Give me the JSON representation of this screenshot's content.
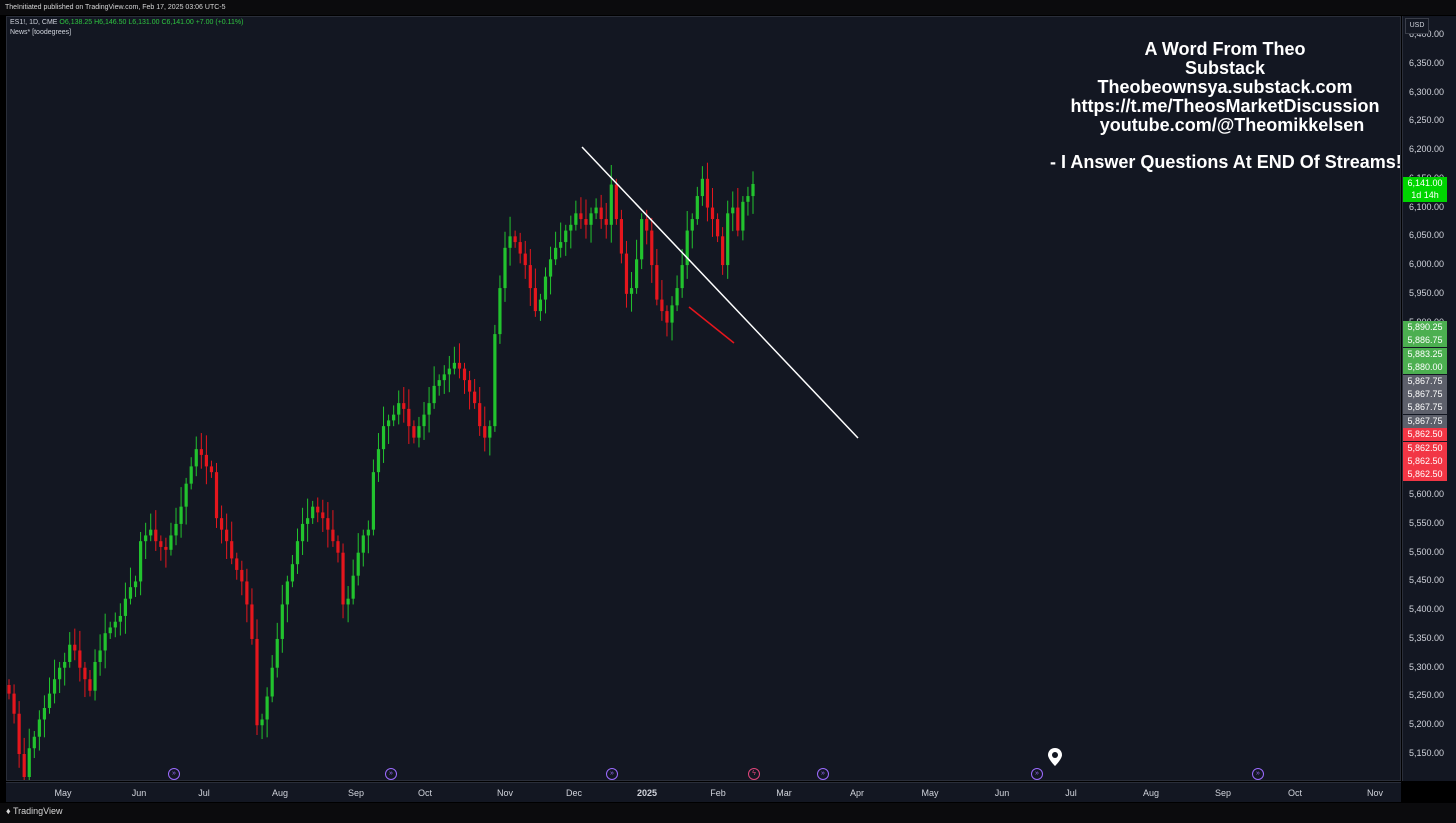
{
  "header": {
    "published_by": "TheInitiated published on TradingView.com, Feb 17, 2025 03:06 UTC-5"
  },
  "legend": {
    "symbol": "ES1!, 1D, CME",
    "open": "O6,138.25",
    "high": "H6,146.50",
    "low": "L6,131.00",
    "close": "C6,141.00",
    "change": "+7.00 (+0.11%)",
    "indicator": "News* [toodegrees]"
  },
  "annotation": {
    "line1": "A Word From Theo",
    "line2": "Substack",
    "line3": "Theobeownsya.substack.com",
    "line4": "https://t.me/TheosMarketDiscussion",
    "line5": "youtube.com/@Theomikkelsen",
    "line6": "- I Answer Questions At END Of Streams!"
  },
  "price_axis": {
    "currency": "USD",
    "ticks": [
      "6,400.00",
      "6,350.00",
      "6,300.00",
      "6,250.00",
      "6,200.00",
      "6,150.00",
      "6,100.00",
      "6,050.00",
      "6,000.00",
      "5,950.00",
      "5,900.00",
      "5,600.00",
      "5,550.00",
      "5,500.00",
      "5,450.00",
      "5,400.00",
      "5,350.00",
      "5,300.00",
      "5,250.00",
      "5,200.00",
      "5,150.00"
    ],
    "last_price": "6,141.00",
    "countdown": "1d 14h",
    "green_labels": [
      "5,890.25",
      "5,886.75",
      "5,883.25",
      "5,880.00"
    ],
    "gray_labels": [
      "5,867.75",
      "5,867.75",
      "5,867.75",
      "5,867.75"
    ],
    "red_labels": [
      "5,862.50",
      "5,862.50",
      "5,862.50",
      "5,862.50"
    ],
    "colors": {
      "green": "#4caf50",
      "gray": "#5d606b",
      "red": "#f23645",
      "last": "#00d500"
    }
  },
  "time_axis": {
    "labels": [
      "May",
      "Jun",
      "Jul",
      "Aug",
      "Sep",
      "Oct",
      "Nov",
      "Dec",
      "2025",
      "Feb",
      "Mar",
      "Apr",
      "May",
      "Jun",
      "Jul",
      "Aug",
      "Sep",
      "Oct",
      "Nov"
    ]
  },
  "footer": {
    "logo": "TradingView"
  },
  "colors": {
    "up": "#22c32e",
    "down": "#e5161d",
    "background": "#131722",
    "trendline": "#ffffff"
  },
  "icons": {
    "events": "calendar-arrow-icon",
    "flash": "lightning-icon",
    "pin": "location-pin-icon"
  },
  "chart_data": {
    "type": "candlestick",
    "symbol": "ES1!",
    "interval": "1D",
    "ylim": [
      5120,
      6420
    ],
    "x_labels": [
      "May",
      "Jun",
      "Jul",
      "Aug",
      "Sep",
      "Oct",
      "Nov",
      "Dec",
      "2025",
      "Feb",
      "Mar",
      "Apr",
      "May",
      "Jun",
      "Jul",
      "Aug",
      "Sep",
      "Oct",
      "Nov"
    ],
    "closes": [
      5255,
      5220,
      5150,
      5110,
      5160,
      5180,
      5210,
      5230,
      5255,
      5280,
      5300,
      5310,
      5340,
      5330,
      5300,
      5280,
      5260,
      5310,
      5330,
      5360,
      5370,
      5380,
      5390,
      5420,
      5440,
      5450,
      5520,
      5530,
      5540,
      5520,
      5510,
      5505,
      5530,
      5550,
      5580,
      5620,
      5650,
      5680,
      5670,
      5650,
      5640,
      5560,
      5540,
      5520,
      5490,
      5470,
      5450,
      5410,
      5350,
      5200,
      5210,
      5250,
      5300,
      5350,
      5410,
      5450,
      5480,
      5520,
      5550,
      5560,
      5580,
      5570,
      5560,
      5540,
      5520,
      5500,
      5410,
      5420,
      5460,
      5500,
      5530,
      5540,
      5640,
      5680,
      5720,
      5730,
      5740,
      5760,
      5750,
      5720,
      5700,
      5720,
      5740,
      5760,
      5790,
      5800,
      5810,
      5820,
      5830,
      5820,
      5800,
      5780,
      5760,
      5720,
      5700,
      5720,
      5880,
      5960,
      6030,
      6050,
      6040,
      6020,
      6000,
      5960,
      5920,
      5940,
      5980,
      6010,
      6030,
      6040,
      6060,
      6070,
      6090,
      6080,
      6070,
      6090,
      6100,
      6080,
      6070,
      6140,
      6080,
      6020,
      5950,
      5960,
      6010,
      6080,
      6060,
      6000,
      5940,
      5920,
      5900,
      5930,
      5960,
      6000,
      6060,
      6080,
      6120,
      6150,
      6100,
      6080,
      6050,
      6000,
      6090,
      6100,
      6060,
      6110,
      6120,
      6141
    ],
    "trendline": {
      "from": [
        "Nov-end",
        6200
      ],
      "to": [
        "Apr",
        5700
      ]
    }
  }
}
